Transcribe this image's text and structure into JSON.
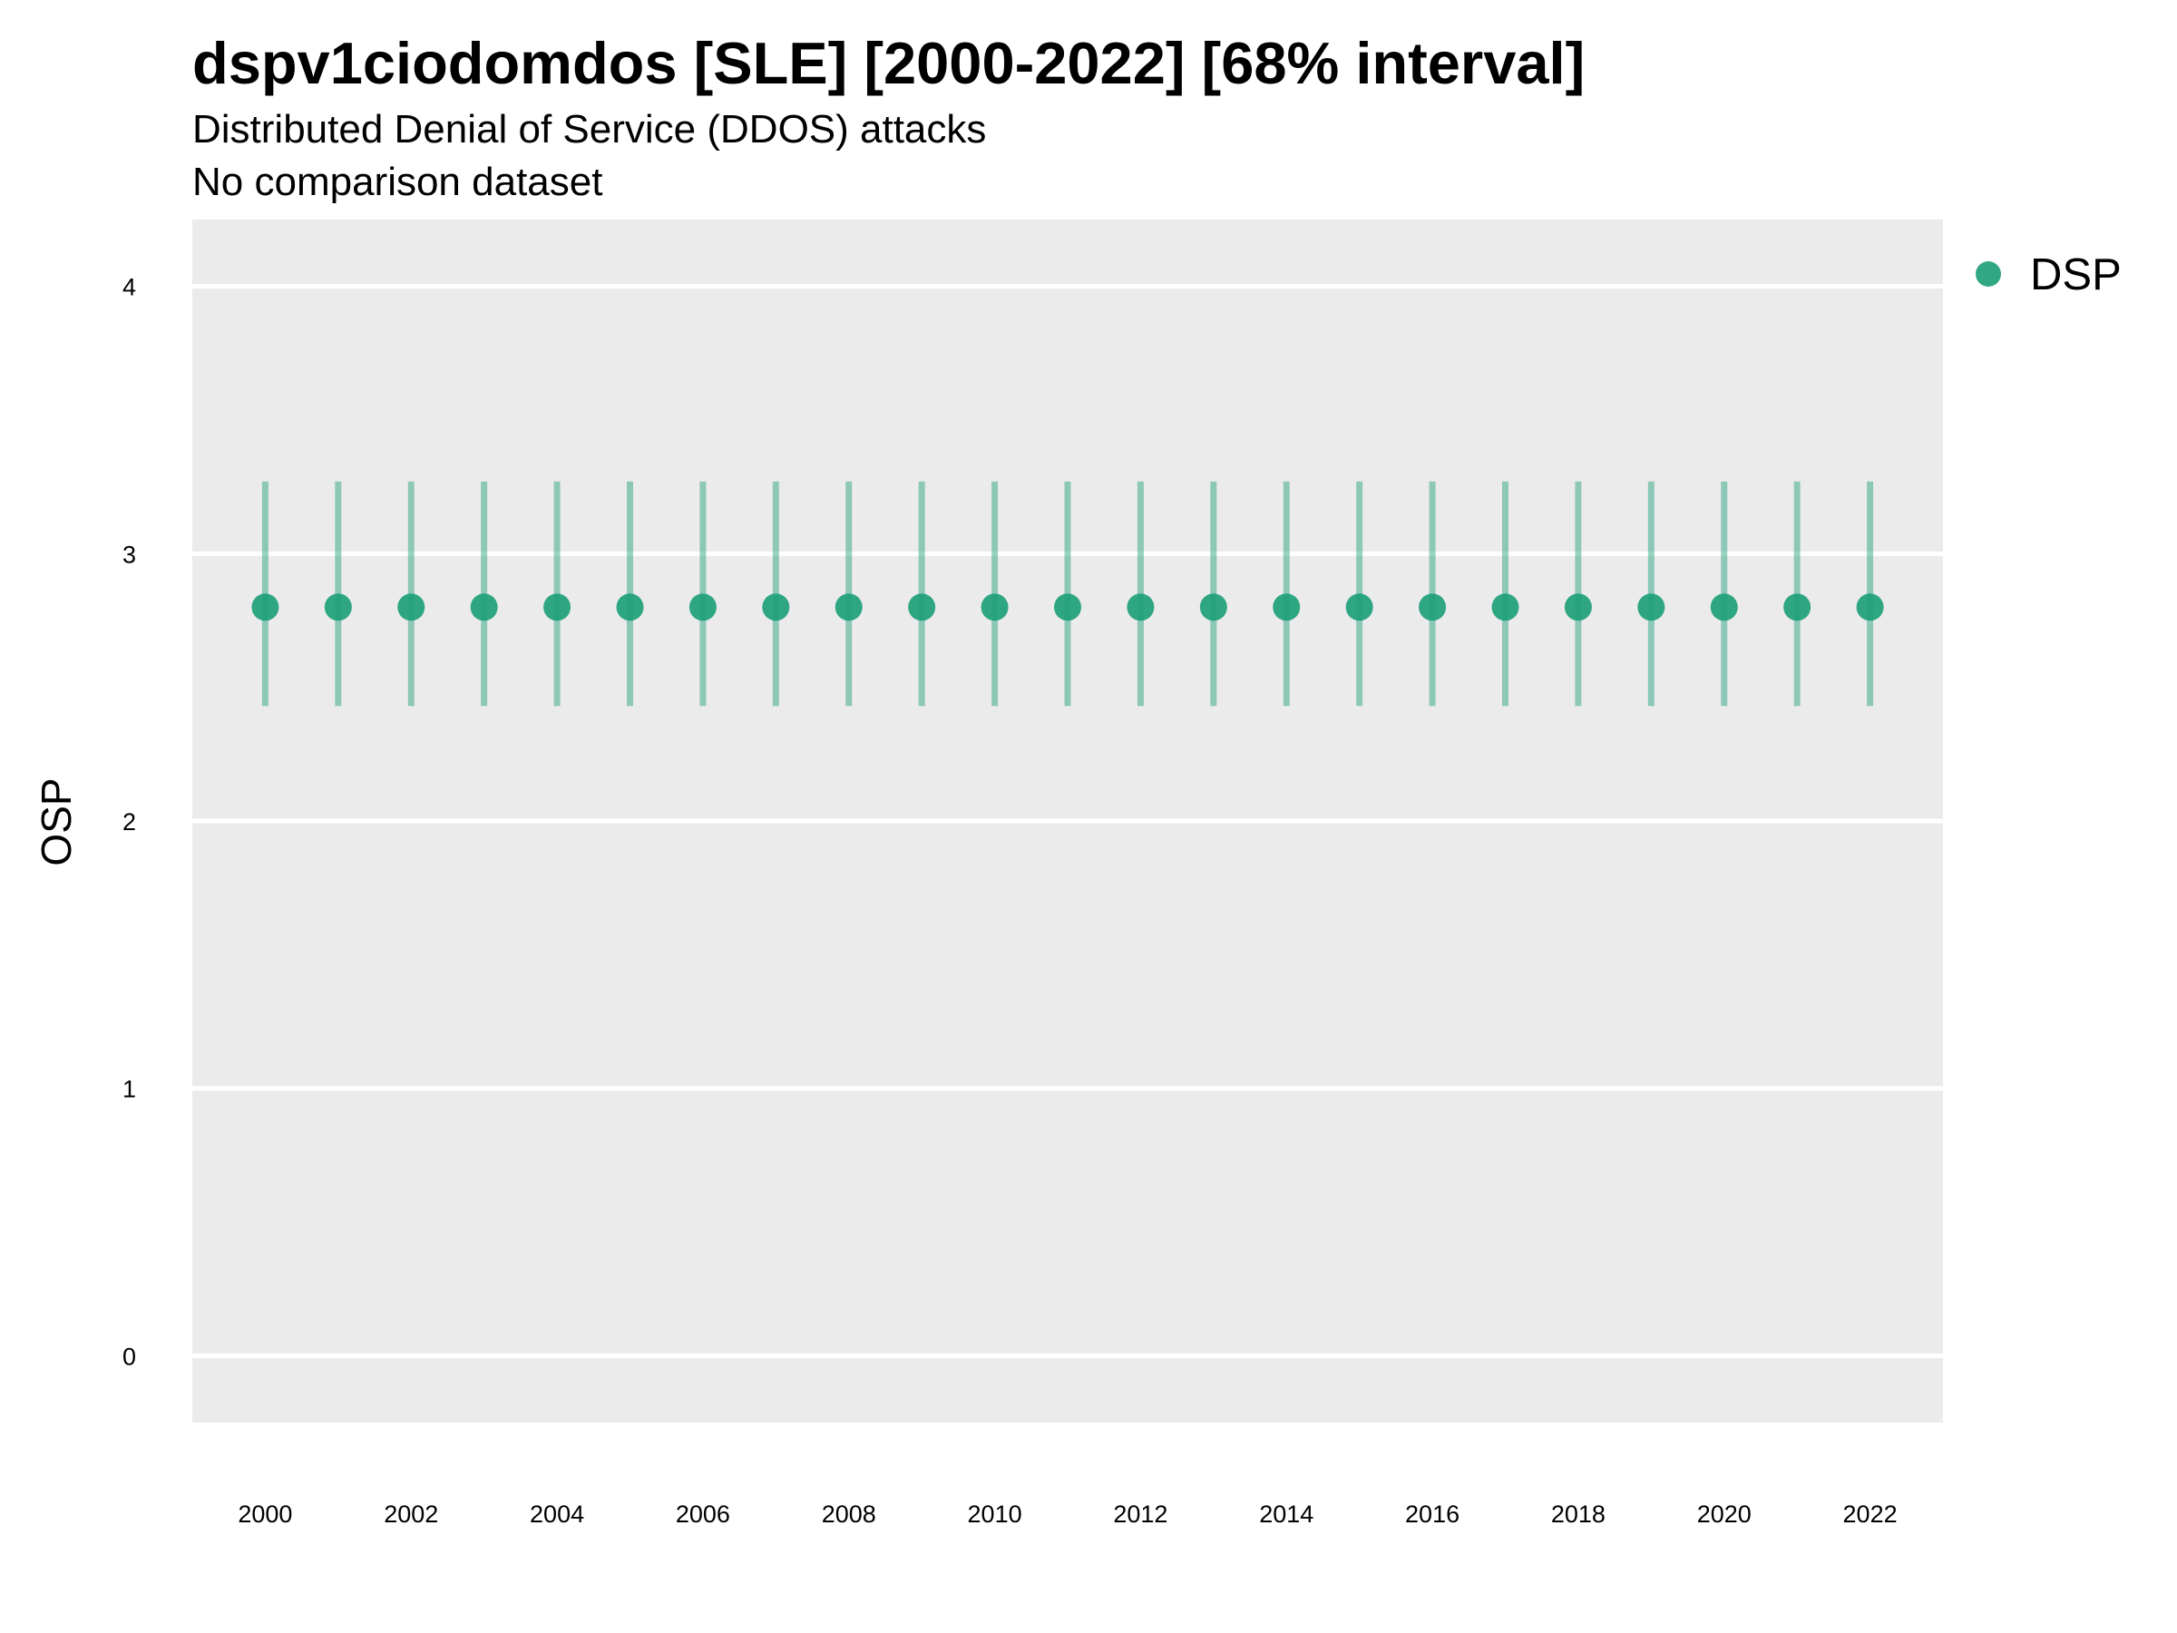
{
  "title": "dspv1ciodomdos [SLE] [2000-2022] [68% interval]",
  "subtitle_line1": "Distributed Denial of Service (DDOS) attacks",
  "subtitle_line2": "No comparison dataset",
  "colors": {
    "series": "#1b9e77",
    "panel_background": "#ebebeb",
    "grid": "#ffffff"
  },
  "chart_data": {
    "type": "scatter",
    "x": [
      2000,
      2001,
      2002,
      2003,
      2004,
      2005,
      2006,
      2007,
      2008,
      2009,
      2010,
      2011,
      2012,
      2013,
      2014,
      2015,
      2016,
      2017,
      2018,
      2019,
      2020,
      2021,
      2022
    ],
    "series": [
      {
        "name": "DSP",
        "values": [
          2.8,
          2.8,
          2.8,
          2.8,
          2.8,
          2.8,
          2.8,
          2.8,
          2.8,
          2.8,
          2.8,
          2.8,
          2.8,
          2.8,
          2.8,
          2.8,
          2.8,
          2.8,
          2.8,
          2.8,
          2.8,
          2.8,
          2.8
        ],
        "lower": [
          2.43,
          2.43,
          2.43,
          2.43,
          2.43,
          2.43,
          2.43,
          2.43,
          2.43,
          2.43,
          2.43,
          2.43,
          2.43,
          2.43,
          2.43,
          2.43,
          2.43,
          2.43,
          2.43,
          2.43,
          2.43,
          2.43,
          2.43
        ],
        "upper": [
          3.27,
          3.27,
          3.27,
          3.27,
          3.27,
          3.27,
          3.27,
          3.27,
          3.27,
          3.27,
          3.27,
          3.27,
          3.27,
          3.27,
          3.27,
          3.27,
          3.27,
          3.27,
          3.27,
          3.27,
          3.27,
          3.27,
          3.27
        ]
      }
    ],
    "xticks": [
      "2000",
      "2002",
      "2004",
      "2006",
      "2008",
      "2010",
      "2012",
      "2014",
      "2016",
      "2018",
      "2020",
      "2022"
    ],
    "yticks": [
      "0",
      "1",
      "2",
      "3",
      "4"
    ],
    "xlabel": "",
    "ylabel": "OSP",
    "xlim": [
      1999,
      2023
    ],
    "ylim": [
      -0.25,
      4.25
    ],
    "grid": true,
    "legend_position": "right"
  }
}
